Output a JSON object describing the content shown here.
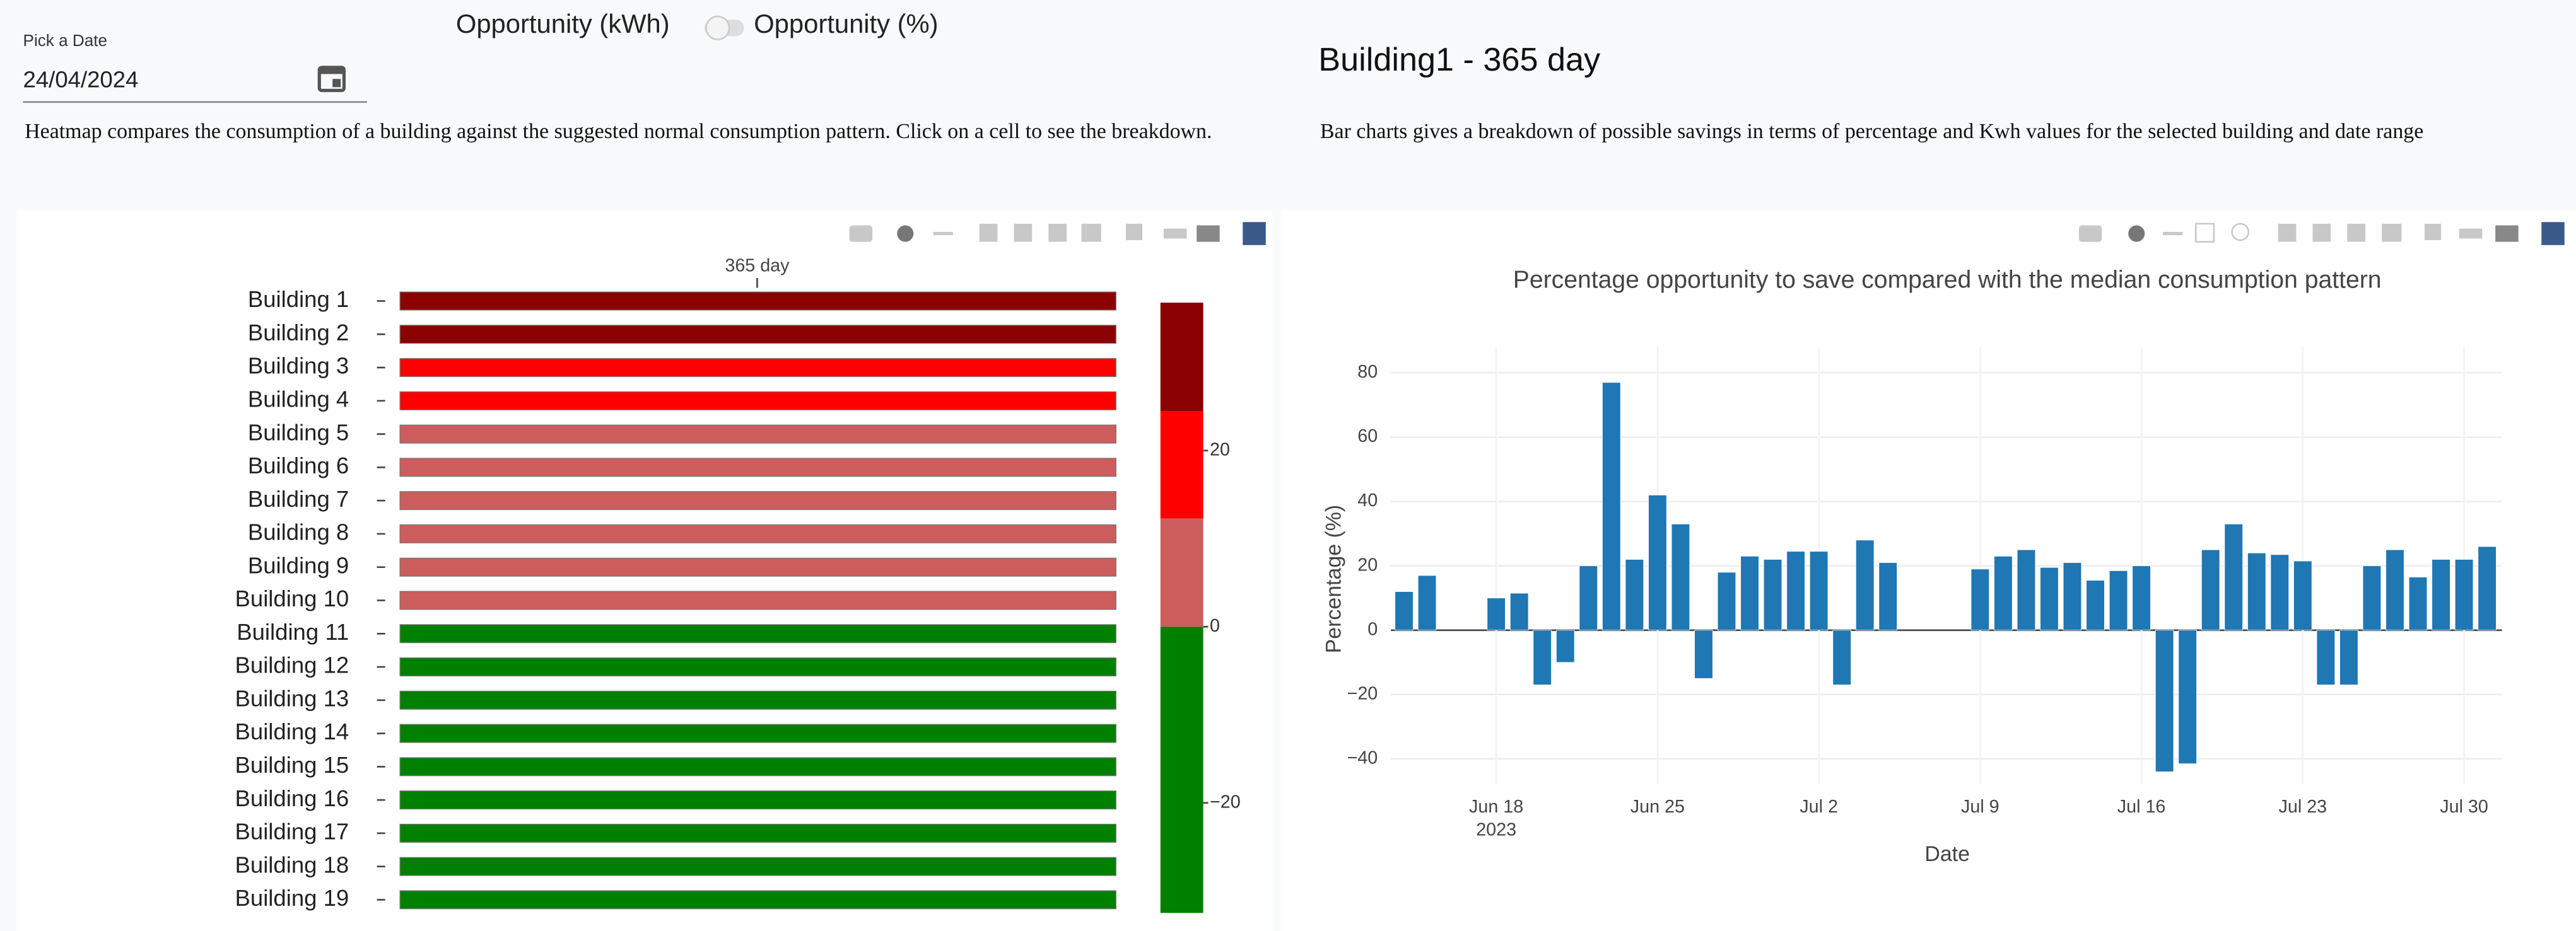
{
  "date_picker": {
    "label": "Pick a Date",
    "value": "24/04/2024"
  },
  "toggle": {
    "left_label": "Opportunity (kWh)",
    "right_label": "Opportunity (%)"
  },
  "heading": "Building1 - 365 day",
  "heatmap_description": "Heatmap compares the consumption of a building against the suggested normal consumption pattern. Click on a cell to see the breakdown.",
  "bar_description": "Bar charts gives a breakdown of possible savings in terms of percentage and Kwh values for the selected building and date range",
  "heatmap": {
    "type": "heatmap",
    "x_category": "365 day",
    "categories": [
      "Building 1",
      "Building 2",
      "Building 3",
      "Building 4",
      "Building 5",
      "Building 6",
      "Building 7",
      "Building 8",
      "Building 9",
      "Building 10",
      "Building 11",
      "Building 12",
      "Building 13",
      "Building 14",
      "Building 15",
      "Building 16",
      "Building 17",
      "Building 18",
      "Building 19"
    ],
    "values": [
      32,
      28,
      20,
      16,
      10,
      9,
      8,
      7,
      6,
      5,
      -3,
      -5,
      -7,
      -9,
      -11,
      -13,
      -15,
      -18,
      -22
    ],
    "colorscale": [
      [
        -32.5,
        0,
        "#008000"
      ],
      [
        0,
        12.3,
        "#cd5c5c"
      ],
      [
        12.3,
        24.5,
        "#ff0000"
      ],
      [
        24.5,
        36.8,
        "#8b0000"
      ]
    ],
    "zlim": [
      -32.5,
      36.8
    ],
    "zticks": [
      20,
      0,
      {
        "value": -20,
        "label": "−20"
      }
    ]
  },
  "bar_chart": {
    "type": "bar",
    "title": "Percentage opportunity to save compared with the median consumption pattern",
    "xlabel": "Date",
    "ylabel": "Percentage (%)",
    "color": "#1f77b4",
    "grid": true,
    "x": [
      "2023-06-14",
      "2023-06-15",
      "2023-06-18",
      "2023-06-19",
      "2023-06-20",
      "2023-06-21",
      "2023-06-22",
      "2023-06-23",
      "2023-06-24",
      "2023-06-25",
      "2023-06-26",
      "2023-06-27",
      "2023-06-28",
      "2023-06-29",
      "2023-06-30",
      "2023-07-01",
      "2023-07-02",
      "2023-07-03",
      "2023-07-04",
      "2023-07-05",
      "2023-07-09",
      "2023-07-10",
      "2023-07-11",
      "2023-07-12",
      "2023-07-13",
      "2023-07-14",
      "2023-07-15",
      "2023-07-16",
      "2023-07-17",
      "2023-07-18",
      "2023-07-19",
      "2023-07-20",
      "2023-07-21",
      "2023-07-22",
      "2023-07-23",
      "2023-07-24",
      "2023-07-25",
      "2023-07-26",
      "2023-07-27",
      "2023-07-28",
      "2023-07-29",
      "2023-07-30",
      "2023-07-31"
    ],
    "values": [
      12,
      17,
      10,
      11.5,
      -17,
      -10,
      20,
      77,
      22,
      42,
      33,
      -15,
      18,
      23,
      22,
      24.5,
      24.5,
      -17,
      28,
      21,
      19,
      23,
      25,
      19.5,
      21,
      15.5,
      18.5,
      20,
      -44,
      -41.5,
      25,
      33,
      24,
      23.5,
      21.5,
      -17,
      -17,
      20,
      25,
      16.5,
      22,
      22,
      26
    ],
    "xlim": [
      "2023-06-13",
      "2023-08-01"
    ],
    "xticks": [
      {
        "value": "2023-06-18",
        "label": "Jun 18"
      },
      {
        "value": "2023-06-25",
        "label": "Jun 25"
      },
      {
        "value": "2023-07-02",
        "label": "Jul 2"
      },
      {
        "value": "2023-07-09",
        "label": "Jul 9"
      },
      {
        "value": "2023-07-16",
        "label": "Jul 16"
      },
      {
        "value": "2023-07-23",
        "label": "Jul 23"
      },
      {
        "value": "2023-07-30",
        "label": "Jul 30"
      }
    ],
    "x_year_label": "2023",
    "ylim": [
      -48,
      88
    ],
    "yticks": [
      {
        "value": -40,
        "label": "−40"
      },
      {
        "value": -20,
        "label": "−20"
      },
      0,
      20,
      40,
      60,
      80
    ]
  }
}
